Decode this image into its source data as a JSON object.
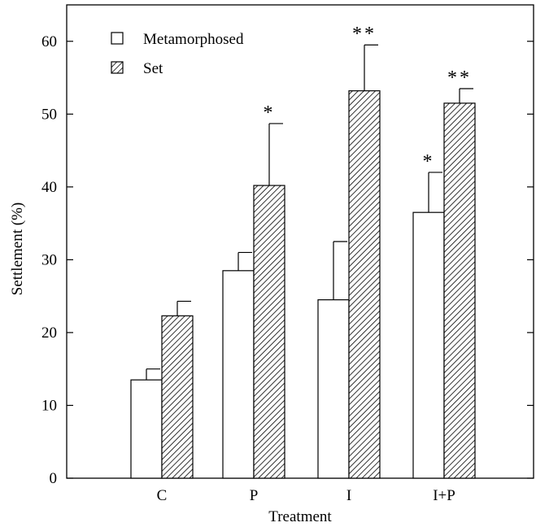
{
  "chart_data": {
    "type": "bar",
    "title": "",
    "xlabel": "Treatment",
    "ylabel": "Settlement (%)",
    "ylim": [
      0,
      65
    ],
    "yticks": [
      0,
      10,
      20,
      30,
      40,
      50,
      60
    ],
    "grid": false,
    "legend_position": "top-left",
    "categories": [
      "C",
      "P",
      "I",
      "I+P"
    ],
    "series": [
      {
        "name": "Metamorphosed",
        "fill": "open",
        "values": [
          13.5,
          28.5,
          24.5,
          36.5
        ],
        "errors": [
          1.5,
          2.5,
          8.0,
          5.5
        ],
        "significance": [
          "",
          "",
          "",
          "*"
        ]
      },
      {
        "name": "Set",
        "fill": "hatched",
        "values": [
          22.3,
          40.2,
          53.2,
          51.5
        ],
        "errors": [
          2.0,
          8.5,
          6.3,
          2.0
        ],
        "significance": [
          "",
          "*",
          "**",
          "**"
        ]
      }
    ]
  }
}
